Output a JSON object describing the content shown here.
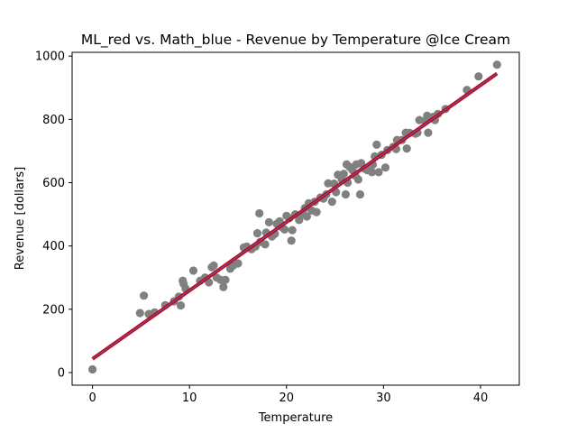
{
  "chart_data": {
    "type": "scatter",
    "title": "ML_red vs. Math_blue - Revenue by Temperature @Ice Cream",
    "xlabel": "Temperature",
    "ylabel": "Revenue [dollars]",
    "xlim": [
      -2.1,
      44
    ],
    "ylim": [
      -40,
      1012
    ],
    "xticks": [
      0,
      10,
      20,
      30,
      40
    ],
    "yticks": [
      0,
      200,
      400,
      600,
      800,
      1000
    ],
    "grid": false,
    "colors": {
      "points": "#808080",
      "ml_line": "#cc0000",
      "math_line": "#6a4fa8"
    },
    "series": [
      {
        "type": "scatter",
        "points": [
          [
            0,
            10
          ],
          [
            4.9,
            188
          ],
          [
            5.3,
            243
          ],
          [
            5.8,
            185
          ],
          [
            6.4,
            190
          ],
          [
            7.5,
            213
          ],
          [
            8.4,
            225
          ],
          [
            8.9,
            240
          ],
          [
            9.1,
            212
          ],
          [
            9.3,
            290
          ],
          [
            9.4,
            280
          ],
          [
            9.6,
            265
          ],
          [
            10.4,
            322
          ],
          [
            11.1,
            290
          ],
          [
            11.6,
            300
          ],
          [
            12.0,
            285
          ],
          [
            12.3,
            333
          ],
          [
            12.5,
            338
          ],
          [
            12.8,
            300
          ],
          [
            13.2,
            293
          ],
          [
            13.5,
            270
          ],
          [
            13.7,
            293
          ],
          [
            14.2,
            328
          ],
          [
            14.5,
            338
          ],
          [
            15.0,
            345
          ],
          [
            15.6,
            395
          ],
          [
            15.9,
            398
          ],
          [
            16.4,
            390
          ],
          [
            16.8,
            398
          ],
          [
            17.0,
            440
          ],
          [
            17.2,
            503
          ],
          [
            17.3,
            413
          ],
          [
            17.8,
            405
          ],
          [
            17.9,
            442
          ],
          [
            18.2,
            475
          ],
          [
            18.5,
            430
          ],
          [
            18.8,
            438
          ],
          [
            19.0,
            470
          ],
          [
            19.3,
            478
          ],
          [
            19.5,
            460
          ],
          [
            19.8,
            452
          ],
          [
            20.0,
            495
          ],
          [
            20.3,
            488
          ],
          [
            20.5,
            417
          ],
          [
            20.6,
            450
          ],
          [
            20.9,
            500
          ],
          [
            21.3,
            482
          ],
          [
            21.7,
            500
          ],
          [
            21.9,
            520
          ],
          [
            22.1,
            493
          ],
          [
            22.3,
            535
          ],
          [
            22.6,
            512
          ],
          [
            22.9,
            540
          ],
          [
            23.1,
            507
          ],
          [
            23.5,
            553
          ],
          [
            23.8,
            550
          ],
          [
            24.1,
            563
          ],
          [
            24.3,
            598
          ],
          [
            24.7,
            540
          ],
          [
            24.9,
            597
          ],
          [
            25.1,
            570
          ],
          [
            25.3,
            625
          ],
          [
            25.7,
            610
          ],
          [
            25.9,
            628
          ],
          [
            26.1,
            563
          ],
          [
            26.2,
            658
          ],
          [
            26.3,
            600
          ],
          [
            26.5,
            650
          ],
          [
            26.8,
            640
          ],
          [
            27.1,
            622
          ],
          [
            27.2,
            658
          ],
          [
            27.4,
            610
          ],
          [
            27.6,
            563
          ],
          [
            27.7,
            662
          ],
          [
            28.0,
            645
          ],
          [
            28.3,
            640
          ],
          [
            28.8,
            633
          ],
          [
            28.9,
            657
          ],
          [
            29.1,
            683
          ],
          [
            29.3,
            720
          ],
          [
            29.5,
            633
          ],
          [
            29.8,
            688
          ],
          [
            30.2,
            648
          ],
          [
            30.4,
            703
          ],
          [
            31.0,
            713
          ],
          [
            31.3,
            706
          ],
          [
            31.4,
            735
          ],
          [
            31.9,
            735
          ],
          [
            32.3,
            758
          ],
          [
            32.4,
            708
          ],
          [
            32.7,
            757
          ],
          [
            33.3,
            755
          ],
          [
            33.5,
            758
          ],
          [
            33.7,
            798
          ],
          [
            34.3,
            795
          ],
          [
            34.5,
            812
          ],
          [
            34.6,
            758
          ],
          [
            35.1,
            808
          ],
          [
            35.3,
            798
          ],
          [
            35.6,
            817
          ],
          [
            36.4,
            833
          ],
          [
            38.6,
            893
          ],
          [
            39.8,
            936
          ],
          [
            41.7,
            973
          ]
        ]
      },
      {
        "type": "line",
        "name": "ML",
        "x": [
          0,
          41.7
        ],
        "y": [
          43,
          945
        ]
      },
      {
        "type": "line",
        "name": "Math",
        "x": [
          0,
          41.7
        ],
        "y": [
          43,
          945
        ]
      }
    ]
  }
}
